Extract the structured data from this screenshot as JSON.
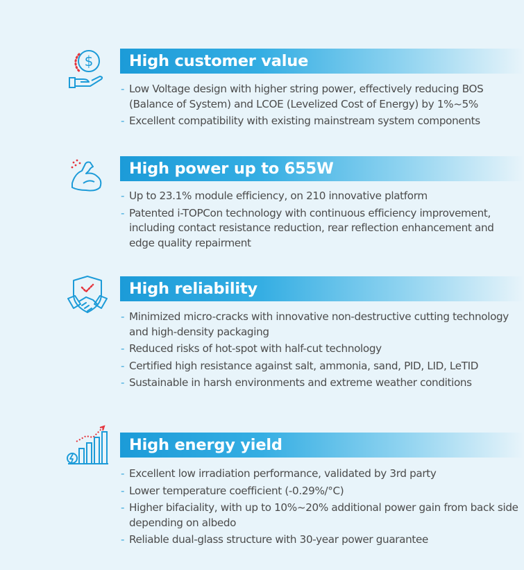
{
  "sections": [
    {
      "icon": "hand-dollar-icon",
      "title": "High customer value",
      "bullets": [
        "Low Voltage design with higher string power, effectively reducing BOS (Balance of System) and LCOE (Levelized Cost of Energy) by 1%~5%",
        "Excellent compatibility with existing mainstream system components"
      ]
    },
    {
      "icon": "flexed-arm-icon",
      "title": "High power up to 655W",
      "bullets": [
        "Up to 23.1% module efficiency, on 210 innovative platform",
        "Patented i-TOPCon technology with continuous efficiency improvement, including contact resistance reduction, rear reflection enhancement and edge quality repairment"
      ]
    },
    {
      "icon": "shield-handshake-icon",
      "title": "High reliability",
      "bullets": [
        "Minimized micro-cracks with innovative non-destructive cutting technology and high-density packaging",
        "Reduced risks of hot-spot with half-cut technology",
        "Certified high resistance against salt, ammonia, sand, PID, LID, LeTID",
        "Sustainable in harsh environments and extreme weather conditions"
      ]
    },
    {
      "icon": "energy-bar-chart-icon",
      "title": "High energy yield",
      "bullets": [
        "Excellent low irradiation performance, validated by 3rd party",
        "Lower temperature coefficient (-0.29%/°C)",
        "Higher bifaciality, with up to 10%~20% additional power gain from back side depending on albedo",
        "Reliable  dual-glass structure with 30-year power guarantee"
      ]
    }
  ],
  "colors": {
    "accent_blue": "#1c9bd8",
    "icon_red": "#e5333b",
    "text": "#4b4b4b",
    "background": "#e8f4fa"
  }
}
